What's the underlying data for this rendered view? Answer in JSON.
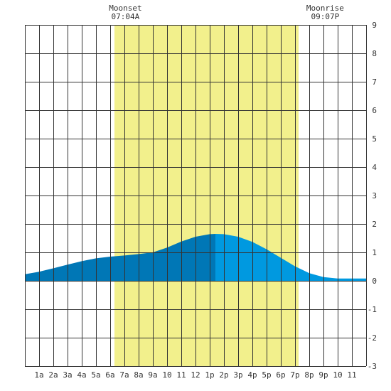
{
  "chart_data": {
    "type": "area",
    "title": "",
    "xlabel": "",
    "ylabel": "",
    "xlim": [
      0,
      24
    ],
    "ylim": [
      -3,
      9
    ],
    "grid": true,
    "x_tick_labels": [
      "1a",
      "2a",
      "3a",
      "4a",
      "5a",
      "6a",
      "7a",
      "8a",
      "9a",
      "10",
      "11",
      "12",
      "1p",
      "2p",
      "3p",
      "4p",
      "5p",
      "6p",
      "7p",
      "8p",
      "9p",
      "10",
      "11"
    ],
    "y_ticks": [
      -3,
      -2,
      -1,
      0,
      1,
      2,
      3,
      4,
      5,
      6,
      7,
      8,
      9
    ],
    "daylight_span": [
      6.3,
      19.25
    ],
    "events": [
      {
        "name": "Moonset",
        "time": "07:04A",
        "x": 7.07
      },
      {
        "name": "Moonrise",
        "time": "09:07P",
        "x": 21.12
      }
    ],
    "series": [
      {
        "x": [
          0,
          1,
          2,
          3,
          4,
          5,
          6,
          7,
          8,
          9,
          10,
          11,
          12,
          13,
          13.4
        ],
        "y": [
          0.23,
          0.32,
          0.44,
          0.57,
          0.69,
          0.79,
          0.85,
          0.89,
          0.94,
          1.0,
          1.17,
          1.38,
          1.55,
          1.64,
          1.65
        ],
        "color": "#0077b6"
      },
      {
        "x": [
          13.4,
          14,
          15,
          16,
          17,
          18,
          19,
          20,
          21,
          22,
          23,
          24
        ],
        "y": [
          1.65,
          1.64,
          1.55,
          1.37,
          1.11,
          0.81,
          0.51,
          0.27,
          0.13,
          0.08,
          0.08,
          0.08
        ],
        "color": "#0099e0"
      }
    ],
    "colors": {
      "daylight": "#f2f08c",
      "grid": "#333333",
      "background": "#ffffff"
    }
  }
}
